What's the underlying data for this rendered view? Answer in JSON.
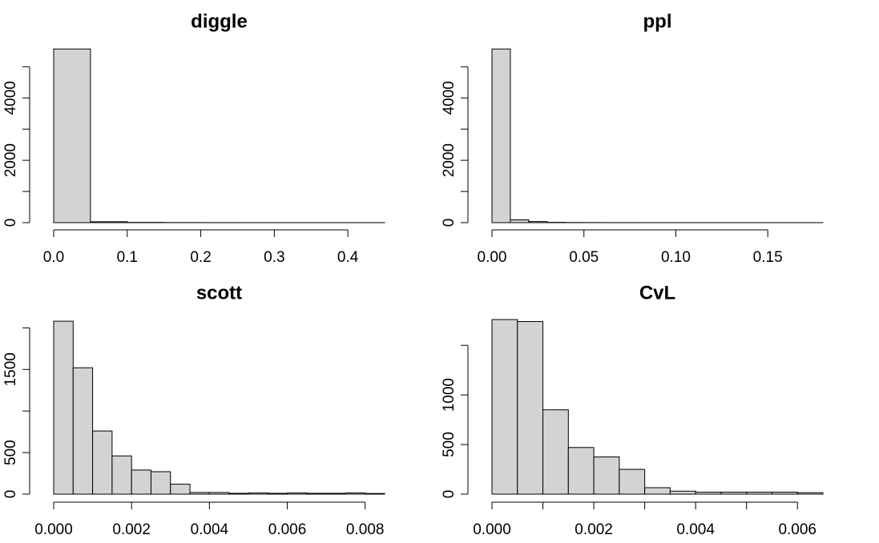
{
  "style": {
    "bar_fill": "#d3d3d3",
    "bar_stroke": "#000000",
    "axis_color": "#000000"
  },
  "chart_data": [
    {
      "type": "bar",
      "title": "diggle",
      "xlabel": "",
      "ylabel": "",
      "bin_edges": [
        0,
        0.05,
        0.1,
        0.15,
        0.2,
        0.25,
        0.3,
        0.35,
        0.4,
        0.45
      ],
      "values": [
        5570,
        30,
        8,
        4,
        2,
        1,
        1,
        1,
        1
      ],
      "xlim": [
        0,
        0.45
      ],
      "ylim": [
        0,
        5600
      ],
      "x_ticks": [
        "0.0",
        "0.1",
        "0.2",
        "0.3",
        "0.4"
      ],
      "x_tick_values": [
        0,
        0.1,
        0.2,
        0.3,
        0.4
      ],
      "y_ticks": [
        "0",
        "2000",
        "4000"
      ],
      "y_tick_values": [
        0,
        2000,
        4000
      ],
      "y_minor_ticks": [
        0,
        1000,
        2000,
        3000,
        4000,
        5000
      ],
      "grid": false
    },
    {
      "type": "bar",
      "title": "ppl",
      "xlabel": "",
      "ylabel": "",
      "bin_edges": [
        0,
        0.01,
        0.02,
        0.03,
        0.04,
        0.05,
        0.06,
        0.07,
        0.08,
        0.09,
        0.1,
        0.11,
        0.12,
        0.13,
        0.14,
        0.15,
        0.16,
        0.17,
        0.18
      ],
      "values": [
        5570,
        90,
        35,
        10,
        5,
        3,
        2,
        2,
        1,
        1,
        1,
        1,
        1,
        1,
        1,
        1,
        1,
        1
      ],
      "xlim": [
        0,
        0.18
      ],
      "ylim": [
        0,
        5600
      ],
      "x_ticks": [
        "0.00",
        "0.05",
        "0.10",
        "0.15"
      ],
      "x_tick_values": [
        0,
        0.05,
        0.1,
        0.15
      ],
      "y_ticks": [
        "0",
        "2000",
        "4000"
      ],
      "y_tick_values": [
        0,
        2000,
        4000
      ],
      "y_minor_ticks": [
        0,
        1000,
        2000,
        3000,
        4000,
        5000
      ],
      "grid": false
    },
    {
      "type": "bar",
      "title": "scott",
      "xlabel": "",
      "ylabel": "",
      "bin_edges": [
        0,
        0.0005,
        0.001,
        0.0015,
        0.002,
        0.0025,
        0.003,
        0.0035,
        0.004,
        0.0045,
        0.005,
        0.0055,
        0.006,
        0.0065,
        0.007,
        0.0075,
        0.008,
        0.0085
      ],
      "values": [
        2080,
        1520,
        760,
        460,
        290,
        270,
        120,
        20,
        20,
        10,
        15,
        10,
        15,
        10,
        10,
        15,
        8
      ],
      "xlim": [
        0,
        0.0085
      ],
      "ylim": [
        0,
        2100
      ],
      "x_ticks": [
        "0.000",
        "0.002",
        "0.004",
        "0.006",
        "0.008"
      ],
      "x_tick_values": [
        0,
        0.002,
        0.004,
        0.006,
        0.008
      ],
      "y_ticks": [
        "0",
        "500",
        "1500"
      ],
      "y_tick_values": [
        0,
        500,
        1500
      ],
      "y_minor_ticks": [
        0,
        500,
        1000,
        1500,
        2000
      ],
      "grid": false
    },
    {
      "type": "bar",
      "title": "CvL",
      "xlabel": "",
      "ylabel": "",
      "bin_edges": [
        0,
        0.0005,
        0.001,
        0.0015,
        0.002,
        0.0025,
        0.003,
        0.0035,
        0.004,
        0.0045,
        0.005,
        0.0055,
        0.006,
        0.0065
      ],
      "values": [
        1760,
        1740,
        850,
        470,
        375,
        250,
        65,
        30,
        20,
        20,
        20,
        20,
        15
      ],
      "xlim": [
        0,
        0.0065
      ],
      "ylim": [
        0,
        1760
      ],
      "x_ticks": [
        "0.000",
        "0.002",
        "0.004",
        "0.006"
      ],
      "x_tick_values": [
        0,
        0.002,
        0.004,
        0.006
      ],
      "x_minor_ticks": [
        0,
        0.001,
        0.002,
        0.003,
        0.004,
        0.005,
        0.006
      ],
      "y_ticks": [
        "0",
        "500",
        "1000"
      ],
      "y_tick_values": [
        0,
        500,
        1000
      ],
      "y_minor_ticks": [
        0,
        500,
        1000,
        1500
      ],
      "grid": false
    }
  ]
}
